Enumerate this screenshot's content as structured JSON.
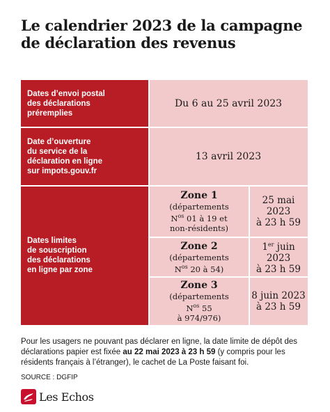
{
  "title": {
    "line1": "Le calendrier 2023 de la campagne",
    "line2": "de déclaration des revenus"
  },
  "rows": {
    "r1": {
      "label": [
        "Dates d’envoi postal",
        "des déclarations",
        "préremplies"
      ],
      "value": "Du 6 au 25 avril 2023"
    },
    "r2": {
      "label": [
        "Date d’ouverture",
        "du service de la",
        "déclaration en ligne",
        "sur impots.gouv.fr"
      ],
      "value": "13 avril 2023"
    },
    "r3": {
      "label": [
        "Dates limites",
        "de souscription",
        "des déclarations",
        "en ligne par zone"
      ],
      "zones": [
        {
          "name": "Zone 1",
          "desc": [
            "(départements",
            "Nos 01 à 19 et",
            "non-résidents)"
          ],
          "date": "25 mai 2023",
          "time": "à 23 h 59"
        },
        {
          "name": "Zone 2",
          "desc": [
            "(départements",
            "Nos 20 à 54)"
          ],
          "date": "1er juin 2023",
          "time": "à 23 h 59"
        },
        {
          "name": "Zone 3",
          "desc": [
            "(départements",
            "Nos 55",
            "à 974/976)"
          ],
          "date": "8 juin 2023",
          "time": "à 23 h 59"
        }
      ]
    }
  },
  "note": {
    "part1": "Pour les usagers ne pouvant pas déclarer en ligne, la date limite de dépôt des déclarations papier est fixée ",
    "bold": "au 22 mai 2023 à 23 h 59",
    "part2": " (y compris pour les résidents français à l’étranger), le cachet de La Poste faisant foi."
  },
  "source": "SOURCE : DGFIP",
  "logo": "Les Echos",
  "colors": {
    "accent_red": "#b81c24",
    "pink_cell": "#f3cacb"
  }
}
